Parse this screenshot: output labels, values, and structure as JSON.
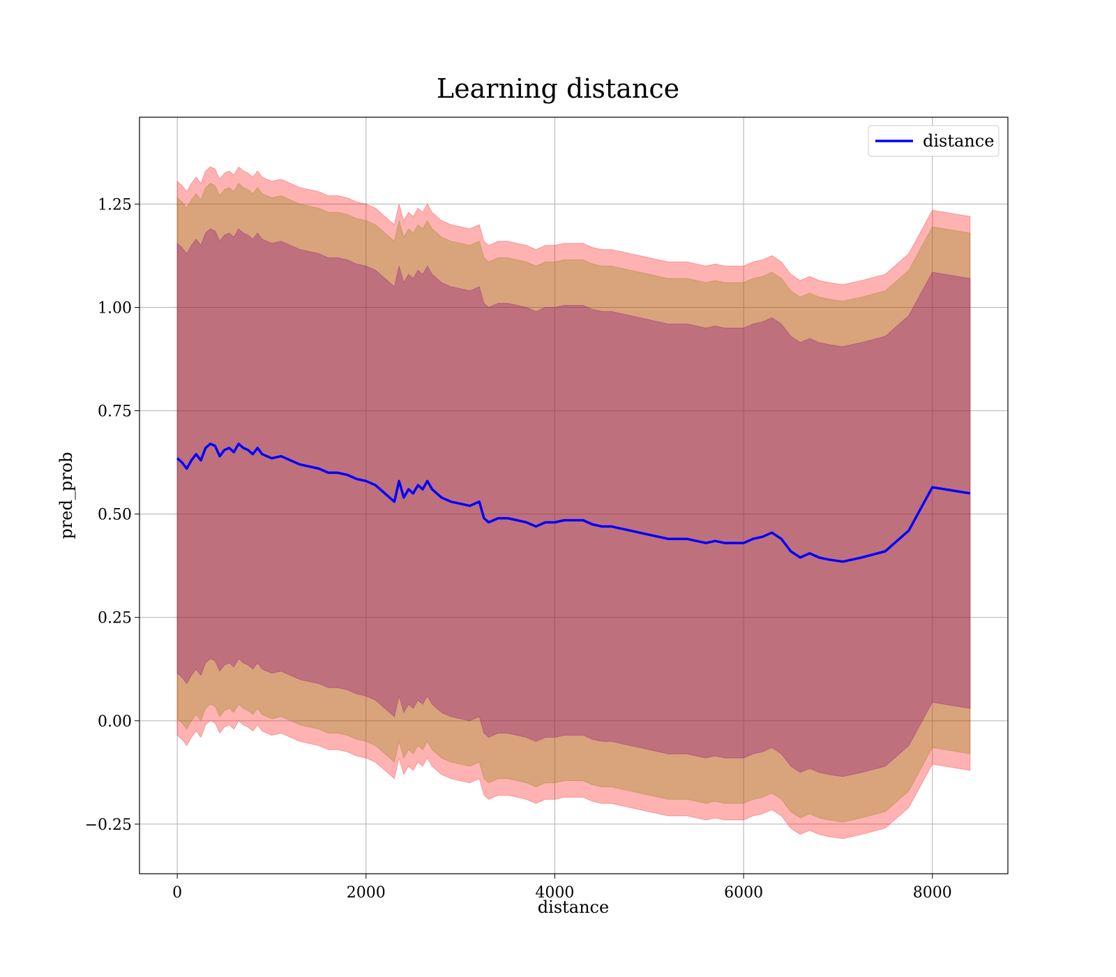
{
  "chart_data": {
    "type": "line",
    "title": "Learning distance",
    "xlabel": "distance",
    "ylabel": "pred_prob",
    "xlim": [
      -400,
      8800
    ],
    "ylim": [
      -0.37,
      1.46
    ],
    "xticks": [
      0,
      2000,
      4000,
      6000,
      8000
    ],
    "yticks": [
      -0.25,
      0.0,
      0.25,
      0.5,
      0.75,
      1.0,
      1.25
    ],
    "ytick_labels": [
      "−0.25",
      "0.00",
      "0.25",
      "0.50",
      "0.75",
      "1.00",
      "1.25"
    ],
    "grid": true,
    "legend": {
      "placement": "top-right",
      "entries": [
        "distance"
      ]
    },
    "series": [
      {
        "name": "distance",
        "color": "#0000ff",
        "x": [
          0,
          50,
          100,
          150,
          200,
          250,
          300,
          350,
          400,
          450,
          500,
          550,
          600,
          650,
          700,
          750,
          800,
          850,
          900,
          950,
          1000,
          1100,
          1200,
          1300,
          1400,
          1500,
          1600,
          1700,
          1800,
          1900,
          2000,
          2100,
          2200,
          2250,
          2300,
          2350,
          2400,
          2450,
          2500,
          2550,
          2600,
          2650,
          2700,
          2800,
          2900,
          3000,
          3100,
          3200,
          3250,
          3300,
          3400,
          3500,
          3600,
          3700,
          3800,
          3900,
          4000,
          4100,
          4200,
          4300,
          4400,
          4500,
          4600,
          4700,
          4800,
          4900,
          5000,
          5100,
          5200,
          5300,
          5400,
          5500,
          5600,
          5700,
          5800,
          5900,
          6000,
          6100,
          6200,
          6300,
          6400,
          6500,
          6600,
          6700,
          6800,
          6900,
          7050,
          7250,
          7500,
          7750,
          8000,
          8400
        ],
        "y": [
          0.635,
          0.625,
          0.61,
          0.63,
          0.645,
          0.63,
          0.66,
          0.67,
          0.665,
          0.64,
          0.655,
          0.66,
          0.65,
          0.67,
          0.66,
          0.655,
          0.645,
          0.66,
          0.645,
          0.64,
          0.635,
          0.64,
          0.63,
          0.62,
          0.615,
          0.61,
          0.6,
          0.6,
          0.595,
          0.585,
          0.58,
          0.57,
          0.55,
          0.54,
          0.53,
          0.58,
          0.54,
          0.56,
          0.55,
          0.57,
          0.56,
          0.58,
          0.56,
          0.54,
          0.53,
          0.525,
          0.52,
          0.53,
          0.49,
          0.48,
          0.49,
          0.49,
          0.485,
          0.48,
          0.47,
          0.48,
          0.48,
          0.485,
          0.485,
          0.485,
          0.475,
          0.47,
          0.47,
          0.465,
          0.46,
          0.455,
          0.45,
          0.445,
          0.44,
          0.44,
          0.44,
          0.435,
          0.43,
          0.435,
          0.43,
          0.43,
          0.43,
          0.44,
          0.445,
          0.455,
          0.44,
          0.41,
          0.395,
          0.405,
          0.395,
          0.39,
          0.385,
          0.395,
          0.41,
          0.46,
          0.565,
          0.55
        ]
      }
    ],
    "bands": [
      {
        "color": "#ff0000",
        "opacity": 0.3,
        "halfwidth": 0.67
      },
      {
        "color": "#808000",
        "opacity": 0.3,
        "halfwidth": 0.63
      },
      {
        "color": "#800080",
        "opacity": 0.3,
        "halfwidth": 0.52
      }
    ]
  }
}
